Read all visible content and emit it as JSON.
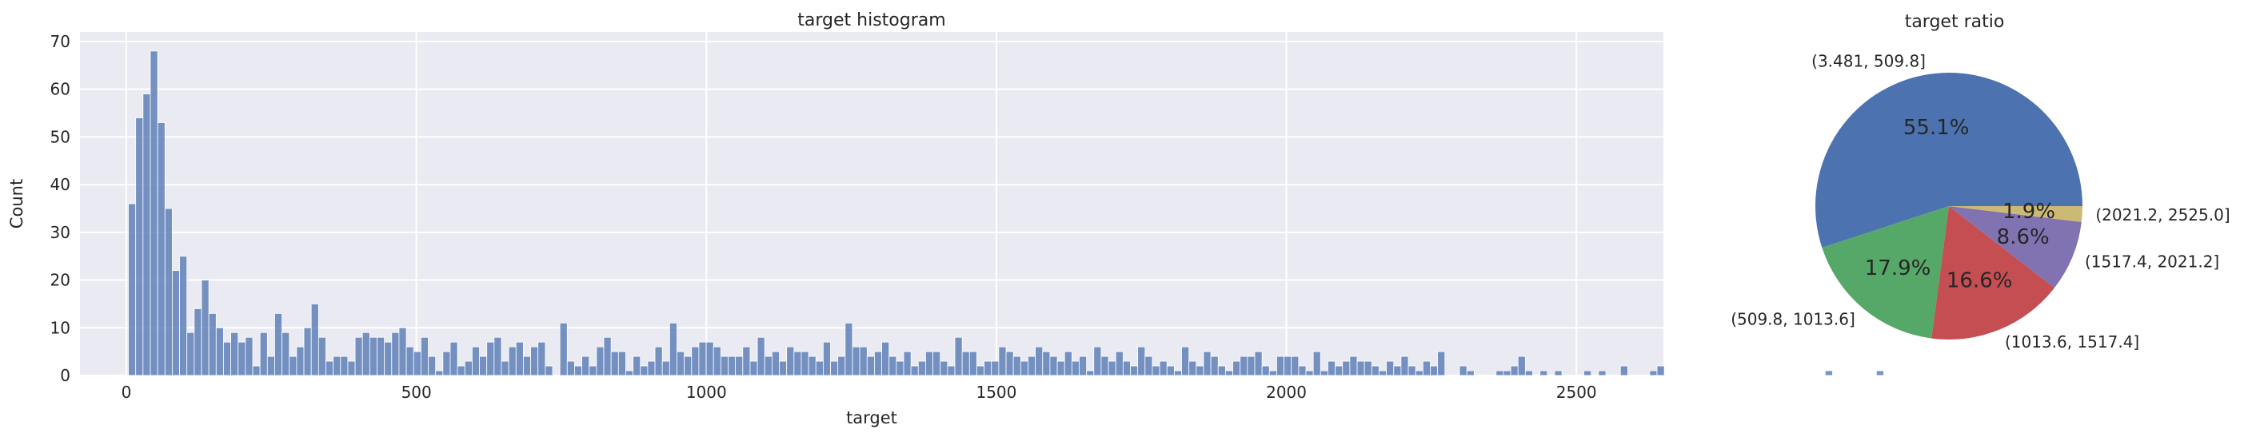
{
  "chart_data": [
    {
      "type": "bar",
      "title": "target histogram",
      "xlabel": "target",
      "ylabel": "Count",
      "xlim": [
        -80,
        2650
      ],
      "ylim": [
        0,
        72
      ],
      "xticks": [
        0,
        500,
        1000,
        1500,
        2000,
        2500
      ],
      "yticks": [
        0,
        10,
        20,
        30,
        40,
        50,
        60,
        70
      ],
      "grid": true,
      "bar_color": "#4c72b0",
      "bin_start": 3.481,
      "bin_width": 12.61,
      "values": [
        36,
        54,
        59,
        68,
        53,
        35,
        22,
        25,
        9,
        14,
        20,
        13,
        10,
        7,
        9,
        7,
        8,
        2,
        9,
        4,
        13,
        9,
        4,
        6,
        10,
        15,
        8,
        3,
        4,
        4,
        3,
        8,
        9,
        8,
        8,
        7,
        9,
        10,
        6,
        5,
        8,
        4,
        1,
        5,
        7,
        2,
        3,
        6,
        4,
        7,
        8,
        3,
        6,
        7,
        4,
        6,
        7,
        2,
        0,
        11,
        3,
        2,
        4,
        2,
        6,
        8,
        5,
        5,
        1,
        4,
        2,
        3,
        6,
        3,
        11,
        5,
        4,
        6,
        7,
        7,
        6,
        4,
        4,
        4,
        6,
        3,
        8,
        4,
        5,
        3,
        6,
        5,
        5,
        4,
        3,
        7,
        3,
        4,
        11,
        6,
        6,
        4,
        5,
        7,
        4,
        3,
        5,
        2,
        3,
        5,
        5,
        3,
        2,
        8,
        5,
        5,
        2,
        3,
        3,
        6,
        5,
        4,
        3,
        4,
        6,
        5,
        4,
        3,
        5,
        3,
        4,
        1,
        6,
        4,
        3,
        5,
        3,
        2,
        6,
        4,
        2,
        3,
        2,
        1,
        6,
        3,
        2,
        5,
        4,
        2,
        1,
        3,
        4,
        4,
        5,
        2,
        1,
        4,
        4,
        4,
        2,
        1,
        5,
        1,
        3,
        2,
        3,
        4,
        3,
        3,
        2,
        1,
        3,
        2,
        4,
        2,
        1,
        3,
        2,
        5,
        0,
        0,
        2,
        1,
        0,
        0,
        0,
        1,
        1,
        2,
        4,
        1,
        0,
        1,
        0,
        1,
        0,
        0,
        0,
        1,
        0,
        1,
        0,
        0,
        2,
        0,
        0,
        0,
        1,
        2,
        0,
        0,
        0,
        0,
        0,
        0,
        0,
        0,
        0,
        0,
        0,
        0,
        0,
        0,
        0,
        0,
        0,
        0,
        0,
        0,
        0,
        0,
        1,
        0,
        0,
        0,
        0,
        0,
        0,
        1
      ]
    },
    {
      "type": "pie",
      "title": "target ratio",
      "slices": [
        {
          "label": "(3.481, 509.8]",
          "value": 55.1,
          "pct_label": "55.1%",
          "color": "#4c72b0"
        },
        {
          "label": "(509.8, 1013.6]",
          "value": 17.9,
          "pct_label": "17.9%",
          "color": "#55a868"
        },
        {
          "label": "(1013.6, 1517.4]",
          "value": 16.6,
          "pct_label": "16.6%",
          "color": "#c44e52"
        },
        {
          "label": "(1517.4, 2021.2]",
          "value": 8.6,
          "pct_label": "8.6%",
          "color": "#8172b2"
        },
        {
          "label": "(2021.2, 2525.0]",
          "value": 1.9,
          "pct_label": "1.9%",
          "color": "#ccb974"
        }
      ]
    }
  ]
}
